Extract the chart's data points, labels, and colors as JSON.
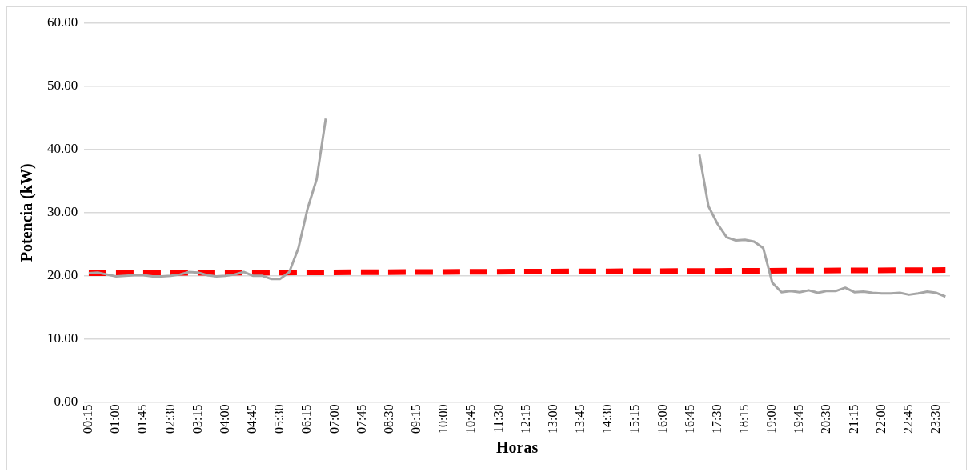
{
  "chart_data": {
    "type": "line",
    "xlabel": "Horas",
    "ylabel": "Potencia (kW)",
    "categories": [
      "00:15",
      null,
      null,
      "01:00",
      null,
      null,
      "01:45",
      null,
      null,
      "02:30",
      null,
      null,
      "03:15",
      null,
      null,
      "04:00",
      null,
      null,
      "04:45",
      null,
      null,
      "05:30",
      null,
      null,
      "06:15",
      null,
      null,
      "07:00",
      null,
      null,
      "07:45",
      null,
      null,
      "08:30",
      null,
      null,
      "09:15",
      null,
      null,
      "10:00",
      null,
      null,
      "10:45",
      null,
      null,
      "11:30",
      null,
      null,
      "12:15",
      null,
      null,
      "13:00",
      null,
      null,
      "13:45",
      null,
      null,
      "14:30",
      null,
      null,
      "15:15",
      null,
      null,
      "16:00",
      null,
      null,
      "16:45",
      null,
      null,
      "17:30",
      null,
      null,
      "18:15",
      null,
      null,
      "19:00",
      null,
      null,
      "19:45",
      null,
      null,
      "20:30",
      null,
      null,
      "21:15",
      null,
      null,
      "22:00",
      null,
      null,
      "22:45",
      null,
      null,
      "23:30",
      null
    ],
    "series": [
      {
        "color": "#a6a6a6",
        "line_style": "solid",
        "values": [
          20.4,
          20.5,
          20.2,
          19.9,
          20.0,
          20.1,
          20.1,
          19.9,
          19.9,
          20.0,
          20.2,
          20.6,
          20.5,
          20.1,
          19.9,
          20.0,
          20.2,
          20.6,
          20.0,
          20.0,
          19.5,
          19.5,
          20.6,
          24.4,
          30.6,
          35.3,
          44.9,
          null,
          null,
          null,
          null,
          null,
          null,
          null,
          null,
          null,
          null,
          null,
          null,
          null,
          null,
          null,
          null,
          null,
          null,
          null,
          null,
          null,
          null,
          null,
          null,
          null,
          null,
          null,
          null,
          null,
          null,
          null,
          null,
          null,
          null,
          null,
          null,
          null,
          null,
          null,
          null,
          39.2,
          31.0,
          28.2,
          26.1,
          25.6,
          25.7,
          25.4,
          24.4,
          18.9,
          17.4,
          17.6,
          17.4,
          17.7,
          17.3,
          17.6,
          17.6,
          18.1,
          17.4,
          17.5,
          17.3,
          17.2,
          17.2,
          17.3,
          17.0,
          17.2,
          17.5,
          17.3,
          16.7
        ]
      },
      {
        "color": "#ff0000",
        "line_style": "dashed",
        "values": [
          20.4,
          null,
          null,
          null,
          null,
          null,
          null,
          null,
          null,
          null,
          null,
          null,
          null,
          null,
          null,
          null,
          null,
          null,
          null,
          null,
          null,
          null,
          null,
          null,
          null,
          null,
          null,
          null,
          null,
          null,
          null,
          null,
          null,
          null,
          null,
          null,
          null,
          null,
          null,
          null,
          null,
          null,
          null,
          null,
          null,
          null,
          null,
          null,
          null,
          null,
          null,
          null,
          null,
          null,
          null,
          null,
          null,
          null,
          null,
          null,
          null,
          null,
          null,
          null,
          null,
          null,
          null,
          null,
          null,
          null,
          null,
          null,
          null,
          null,
          null,
          null,
          null,
          null,
          null,
          null,
          null,
          null,
          null,
          null,
          null,
          null,
          null,
          null,
          null,
          null,
          null,
          null,
          null,
          null,
          20.9
        ]
      }
    ],
    "ylim": [
      0,
      60
    ],
    "yticks": [
      {
        "value": 0,
        "label": "0.00"
      },
      {
        "value": 10,
        "label": "10.00"
      },
      {
        "value": 20,
        "label": "20.00"
      },
      {
        "value": 30,
        "label": "30.00"
      },
      {
        "value": 40,
        "label": "40.00"
      },
      {
        "value": 50,
        "label": "50.00"
      },
      {
        "value": 60,
        "label": "60.00"
      }
    ],
    "grid": "y",
    "legend": false,
    "marker": "none"
  }
}
